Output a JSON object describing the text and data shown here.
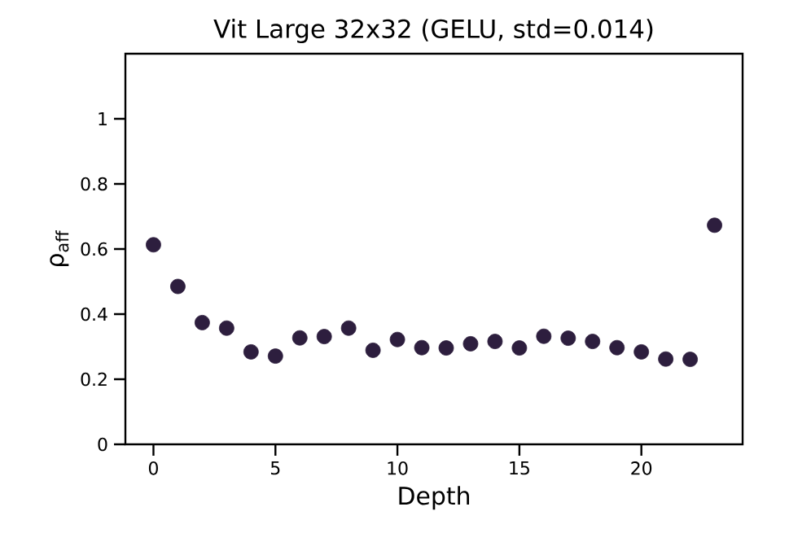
{
  "chart_data": {
    "type": "scatter",
    "title": "Vit Large 32x32 (GELU, std=0.014)",
    "xlabel": "Depth",
    "ylabel": "ρ$_{aff}$",
    "x": [
      0,
      1,
      2,
      3,
      4,
      5,
      6,
      7,
      8,
      9,
      10,
      11,
      12,
      13,
      14,
      15,
      16,
      17,
      18,
      19,
      20,
      21,
      22,
      23
    ],
    "series": [
      {
        "color": "#2d1e3e",
        "values": [
          0.613,
          0.485,
          0.374,
          0.357,
          0.284,
          0.271,
          0.327,
          0.331,
          0.357,
          0.289,
          0.322,
          0.297,
          0.296,
          0.309,
          0.316,
          0.296,
          0.332,
          0.326,
          0.316,
          0.297,
          0.284,
          0.262,
          0.261,
          0.673
        ]
      }
    ],
    "xlim": [
      -1.15,
      24.15
    ],
    "ylim": [
      0,
      1.2
    ],
    "xticks": [
      0,
      5,
      10,
      15,
      20
    ],
    "yticks": [
      0,
      0.2,
      0.4,
      0.6,
      0.8,
      1
    ],
    "marker": "circle",
    "grid": false
  }
}
